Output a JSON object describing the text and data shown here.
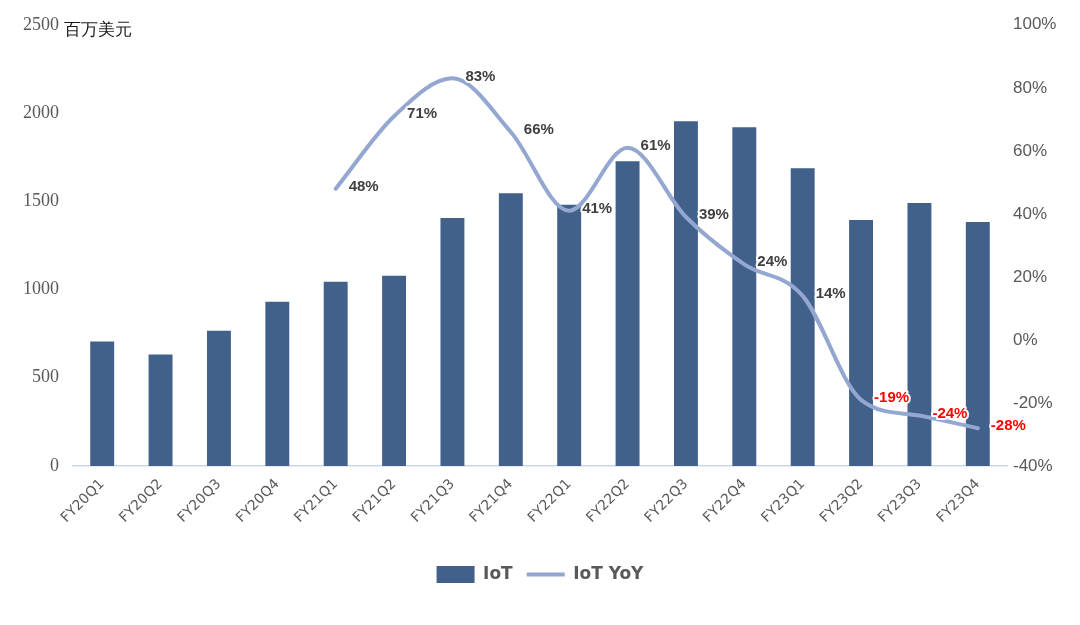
{
  "chart_data": {
    "type": "bar",
    "ylabel": "百万美元",
    "categories": [
      "FY20Q1",
      "FY20Q2",
      "FY20Q3",
      "FY20Q4",
      "FY21Q1",
      "FY21Q2",
      "FY21Q3",
      "FY21Q4",
      "FY22Q1",
      "FY22Q2",
      "FY22Q3",
      "FY22Q4",
      "FY23Q1",
      "FY23Q2",
      "FY23Q3",
      "FY23Q4"
    ],
    "series": [
      {
        "name": "IoT",
        "color": "#41608a",
        "values": [
          705,
          632,
          767,
          931,
          1044,
          1078,
          1405,
          1546,
          1480,
          1727,
          1953,
          1919,
          1687,
          1394,
          1490,
          1383
        ]
      },
      {
        "name": "IoT YoY",
        "type": "line",
        "axis": "y2",
        "color": "#94a7d1",
        "values": [
          null,
          null,
          null,
          null,
          48,
          71,
          83,
          66,
          41,
          61,
          39,
          24,
          14,
          -19,
          -24,
          -28
        ],
        "value_labels": [
          null,
          null,
          null,
          null,
          "48%",
          "71%",
          "83%",
          "66%",
          "41%",
          "61%",
          "39%",
          "24%",
          "14%",
          "-19%",
          "-24%",
          "-28%"
        ]
      }
    ],
    "ylim": [
      0,
      2500
    ],
    "yticks": [
      0,
      500,
      1000,
      1500,
      2000,
      2500
    ],
    "y2lim": [
      -40,
      100
    ],
    "y2ticks": [
      {
        "value": -40,
        "label": "-40%"
      },
      {
        "value": -20,
        "label": "-20%"
      },
      {
        "value": 0,
        "label": "0%"
      },
      {
        "value": 20,
        "label": "20%"
      },
      {
        "value": 40,
        "label": "40%"
      },
      {
        "value": 60,
        "label": "60%"
      },
      {
        "value": 80,
        "label": "80%"
      },
      {
        "value": 100,
        "label": "100%"
      }
    ],
    "grid": false,
    "legend": "bottom",
    "marker": "none"
  }
}
